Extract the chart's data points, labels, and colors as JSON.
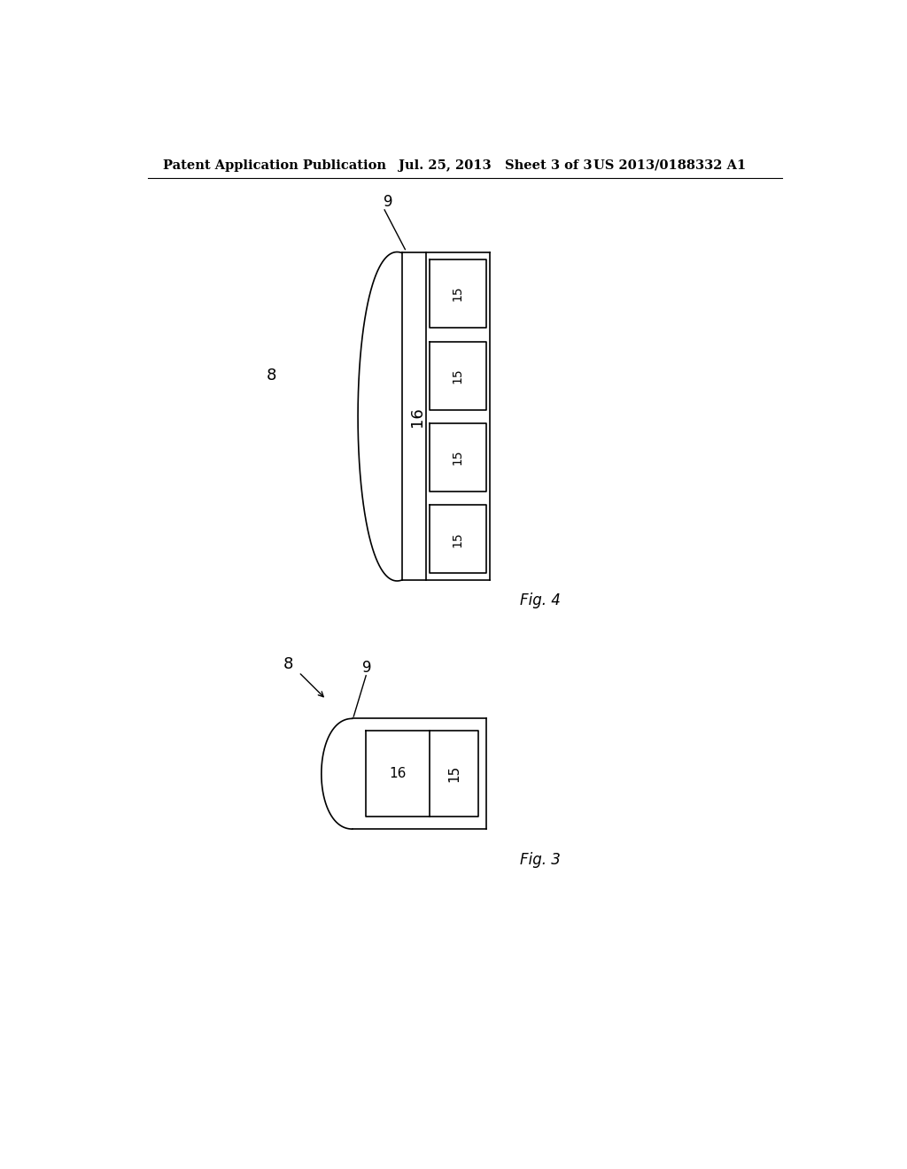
{
  "background_color": "#ffffff",
  "header_left": "Patent Application Publication",
  "header_mid": "Jul. 25, 2013   Sheet 3 of 3",
  "header_right": "US 2013/0188332 A1",
  "header_fontsize": 10.5
}
